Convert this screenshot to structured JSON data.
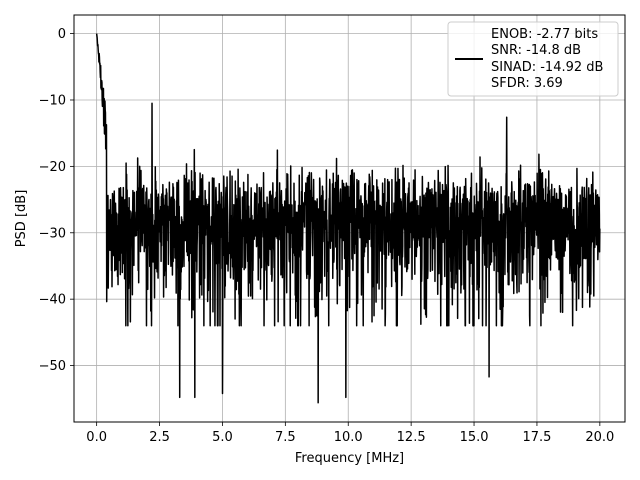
{
  "chart_data": {
    "type": "line",
    "xlabel": "Frequency [MHz]",
    "ylabel": "PSD [dB]",
    "xlim": [
      -0.9,
      21.0
    ],
    "ylim": [
      -58.5,
      2.8
    ],
    "x_ticks": [
      0.0,
      2.5,
      5.0,
      7.5,
      10.0,
      12.5,
      15.0,
      17.5,
      20.0
    ],
    "x_tick_labels": [
      "0.0",
      "2.5",
      "5.0",
      "7.5",
      "10.0",
      "12.5",
      "15.0",
      "17.5",
      "20.0"
    ],
    "y_ticks": [
      0,
      -10,
      -20,
      -30,
      -40,
      -50
    ],
    "y_tick_labels": [
      "0",
      "−10",
      "−20",
      "−30",
      "−40",
      "−50"
    ],
    "grid": true,
    "legend_position": "top-right",
    "series": [
      {
        "name": "ENOB: -2.77 bits\nSNR: -14.8 dB\nSINAD: -14.92 dB\nSFDR: 3.69",
        "color": "#000000",
        "x_range": [
          0.0,
          20.0
        ],
        "num_points": 2000,
        "noise_floor_db": -27,
        "peak": {
          "x": 0.0,
          "y": 0.0
        },
        "notable_spurs": [
          {
            "x": 2.2,
            "y": -10.5
          },
          {
            "x": 16.3,
            "y": -12.6
          }
        ],
        "notable_minima": [
          {
            "x": 3.3,
            "y": -54.8
          },
          {
            "x": 3.9,
            "y": -54.8
          },
          {
            "x": 5.0,
            "y": -54.2
          },
          {
            "x": 8.8,
            "y": -55.6
          },
          {
            "x": 9.9,
            "y": -54.8
          },
          {
            "x": 15.6,
            "y": -51.7
          }
        ]
      }
    ]
  },
  "legend": {
    "lines": [
      "ENOB: -2.77 bits",
      "SNR: -14.8 dB",
      "SINAD: -14.92 dB",
      "SFDR: 3.69"
    ]
  }
}
